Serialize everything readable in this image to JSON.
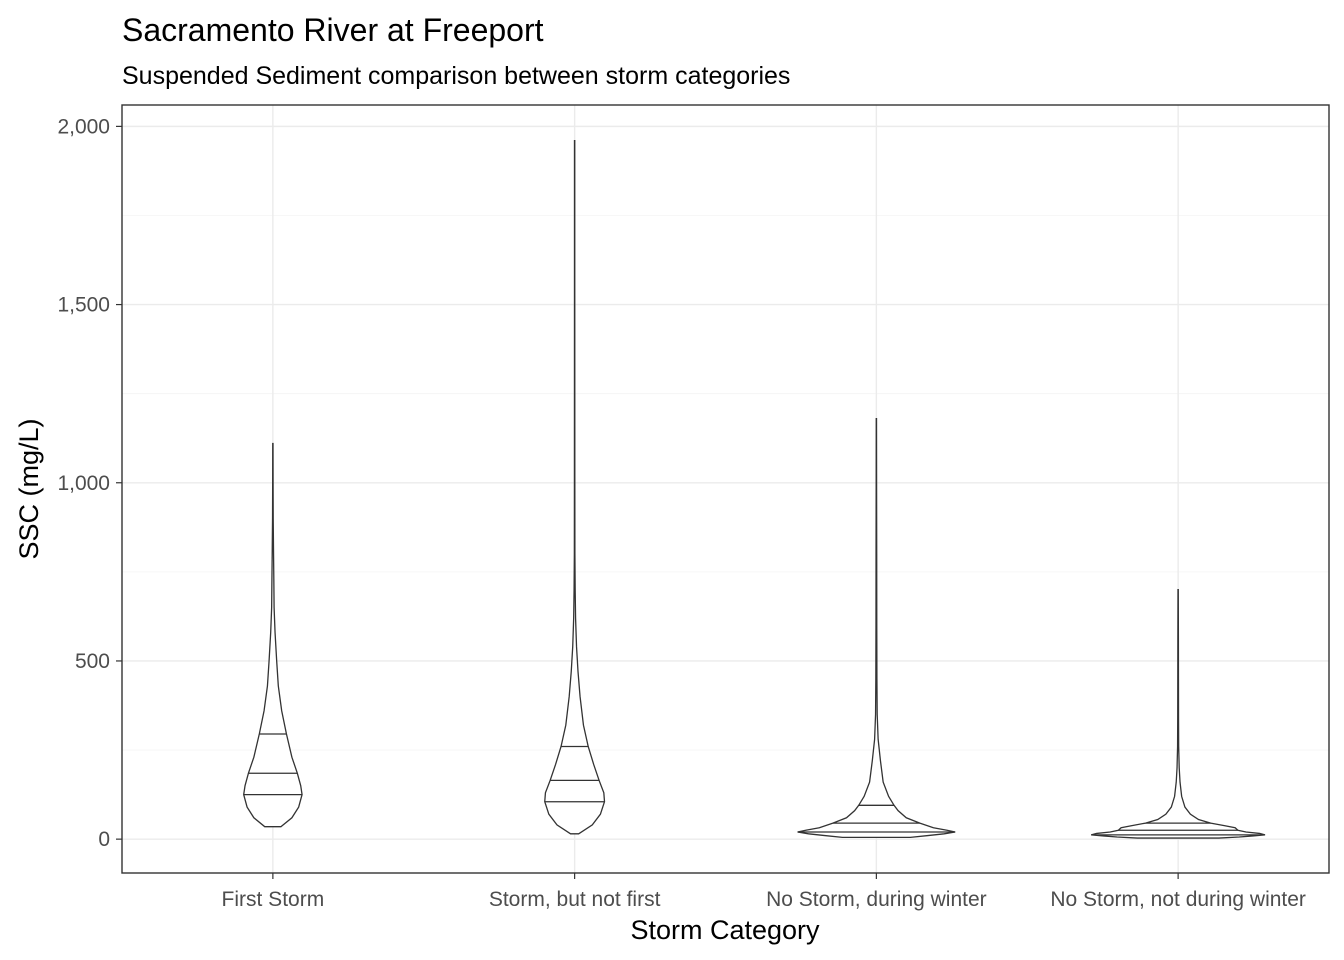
{
  "chart_data": {
    "type": "violin",
    "title": "Sacramento River at Freeport",
    "subtitle": "Suspended Sediment comparison between storm categories",
    "xlabel": "Storm Category",
    "ylabel": "SSC (mg/L)",
    "ylim": [
      -95,
      2060
    ],
    "yticks": [
      {
        "value": 0,
        "label": "0"
      },
      {
        "value": 500,
        "label": "500"
      },
      {
        "value": 1000,
        "label": "1,000"
      },
      {
        "value": 1500,
        "label": "1,500"
      },
      {
        "value": 2000,
        "label": "2,000"
      }
    ],
    "y_minor_ticks": [
      250,
      750,
      1250,
      1750
    ],
    "grid": true,
    "categories": [
      "First Storm",
      "Storm, but not first",
      "No Storm, during winter",
      "No Storm, not during winter"
    ],
    "violins": [
      {
        "category": "First Storm",
        "min": 35,
        "max": 1110,
        "quantiles": [
          125,
          185,
          295
        ],
        "width_profile": [
          [
            35,
            0.06
          ],
          [
            60,
            0.14
          ],
          [
            90,
            0.19
          ],
          [
            125,
            0.215
          ],
          [
            150,
            0.205
          ],
          [
            185,
            0.18
          ],
          [
            230,
            0.14
          ],
          [
            295,
            0.1
          ],
          [
            360,
            0.065
          ],
          [
            430,
            0.04
          ],
          [
            500,
            0.028
          ],
          [
            580,
            0.016
          ],
          [
            650,
            0.009
          ],
          [
            730,
            0.007
          ],
          [
            800,
            0.005
          ],
          [
            900,
            0.0025
          ],
          [
            1000,
            0.0015
          ],
          [
            1110,
            0.001
          ]
        ]
      },
      {
        "category": "Storm, but not first",
        "min": 15,
        "max": 1960,
        "quantiles": [
          105,
          165,
          260
        ],
        "width_profile": [
          [
            15,
            0.03
          ],
          [
            40,
            0.13
          ],
          [
            70,
            0.19
          ],
          [
            105,
            0.22
          ],
          [
            130,
            0.215
          ],
          [
            165,
            0.18
          ],
          [
            210,
            0.14
          ],
          [
            260,
            0.1
          ],
          [
            320,
            0.065
          ],
          [
            400,
            0.04
          ],
          [
            470,
            0.025
          ],
          [
            540,
            0.014
          ],
          [
            620,
            0.007
          ],
          [
            700,
            0.004
          ],
          [
            800,
            0.002
          ],
          [
            1000,
            0.0015
          ],
          [
            1300,
            0.0012
          ],
          [
            1600,
            0.001
          ],
          [
            1960,
            0.001
          ]
        ]
      },
      {
        "category": "No Storm, during winter",
        "min": 5,
        "max": 1180,
        "quantiles": [
          20,
          45,
          95
        ],
        "width_profile": [
          [
            5,
            0.25
          ],
          [
            10,
            0.38
          ],
          [
            15,
            0.5
          ],
          [
            20,
            0.58
          ],
          [
            25,
            0.52
          ],
          [
            32,
            0.42
          ],
          [
            45,
            0.32
          ],
          [
            60,
            0.22
          ],
          [
            80,
            0.16
          ],
          [
            95,
            0.13
          ],
          [
            120,
            0.09
          ],
          [
            160,
            0.05
          ],
          [
            220,
            0.03
          ],
          [
            280,
            0.013
          ],
          [
            350,
            0.006
          ],
          [
            450,
            0.004
          ],
          [
            600,
            0.003
          ],
          [
            800,
            0.0025
          ],
          [
            1000,
            0.0015
          ],
          [
            1180,
            0.001
          ]
        ]
      },
      {
        "category": "No Storm, not during winter",
        "min": 3,
        "max": 700,
        "quantiles": [
          12,
          25,
          45
        ],
        "width_profile": [
          [
            3,
            0.3
          ],
          [
            6,
            0.45
          ],
          [
            9,
            0.55
          ],
          [
            12,
            0.64
          ],
          [
            16,
            0.6
          ],
          [
            20,
            0.5
          ],
          [
            25,
            0.44
          ],
          [
            32,
            0.42
          ],
          [
            38,
            0.34
          ],
          [
            45,
            0.24
          ],
          [
            55,
            0.15
          ],
          [
            70,
            0.09
          ],
          [
            90,
            0.05
          ],
          [
            120,
            0.026
          ],
          [
            160,
            0.014
          ],
          [
            200,
            0.008
          ],
          [
            260,
            0.004
          ],
          [
            340,
            0.003
          ],
          [
            450,
            0.0025
          ],
          [
            560,
            0.002
          ],
          [
            700,
            0.001
          ]
        ]
      }
    ]
  }
}
